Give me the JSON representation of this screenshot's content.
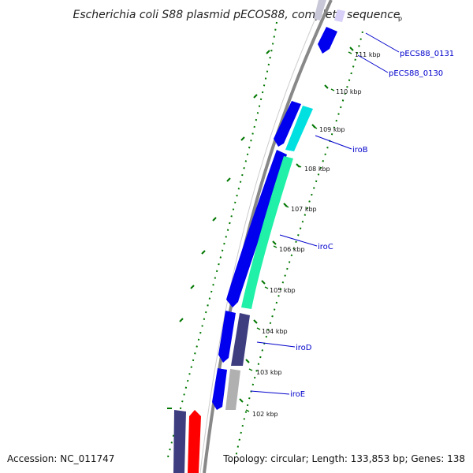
{
  "title": "Escherichia coli S88 plasmid pECOS88, complete sequence",
  "accession": "Accession: NC_011747",
  "topology": "Topology: circular; Length: 133,853 bp; Genes: 138",
  "tick_labels": [
    "p",
    "111 kbp",
    "110 kbp",
    "109 kbp",
    "108 kbp",
    "107 kbp",
    "106 kbp",
    "105 kbp",
    "104 kbp",
    "103 kbp",
    "102 kbp"
  ],
  "gene_labels": [
    "pECS88_0131",
    "pECS88_0130",
    "iroB",
    "iroC",
    "iroD",
    "iroE"
  ],
  "colors": {
    "forward_cds": "#0000ee",
    "reverse_cds_iroB": "#00e0e0",
    "reverse_cds_iroC": "#20f0a8",
    "reverse_cds_iroD": "#3d3d80",
    "reverse_cds_iroE": "#b0b0b0",
    "red_feature": "#ff0000",
    "backbone": "#888888",
    "gc_skew": "#007700",
    "label_line": "#0000cc"
  }
}
